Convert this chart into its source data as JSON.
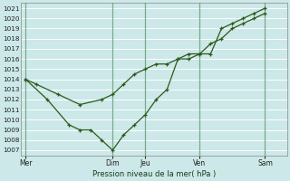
{
  "title": "Pression niveau de la mer( hPa )",
  "bg_color": "#cce8e8",
  "grid_color": "#ffffff",
  "line_color": "#2d5a1b",
  "vline_color": "#7aaa8a",
  "ylim": [
    1006.5,
    1021.5
  ],
  "yticks": [
    1007,
    1008,
    1009,
    1010,
    1011,
    1012,
    1013,
    1014,
    1015,
    1016,
    1017,
    1018,
    1019,
    1020,
    1021
  ],
  "x_day_labels": [
    "Mer",
    "Dim",
    "Jeu",
    "Ven",
    "Sam"
  ],
  "x_day_positions": [
    0,
    4.0,
    5.5,
    8.0,
    11.0
  ],
  "vline_x": [
    0,
    4.0,
    5.5,
    8.0,
    11.0
  ],
  "xlim": [
    -0.2,
    11.5
  ],
  "line1_x": [
    0,
    0.5,
    1.5,
    2.5,
    3.5,
    4.0,
    4.5,
    5.0,
    5.5,
    6.0,
    6.5,
    7.0,
    7.5,
    8.0,
    8.5,
    9.0,
    9.5,
    10.0,
    10.5,
    11.0
  ],
  "line1_y": [
    1014,
    1013.5,
    1012.5,
    1011.5,
    1012.0,
    1012.5,
    1013.5,
    1014.5,
    1015.0,
    1015.5,
    1015.5,
    1016.0,
    1016.5,
    1016.5,
    1017.5,
    1018.0,
    1019.0,
    1019.5,
    1020.0,
    1020.5
  ],
  "line2_x": [
    0,
    1.0,
    2.0,
    2.5,
    3.0,
    3.5,
    4.0,
    4.5,
    5.0,
    5.5,
    6.0,
    6.5,
    7.0,
    7.5,
    8.0,
    8.5,
    9.0,
    9.5,
    10.0,
    10.5,
    11.0
  ],
  "line2_y": [
    1014,
    1012,
    1009.5,
    1009.0,
    1009.0,
    1008.0,
    1007.0,
    1008.5,
    1009.5,
    1010.5,
    1012.0,
    1013.0,
    1016.0,
    1016.0,
    1016.5,
    1016.5,
    1019.0,
    1019.5,
    1020.0,
    1020.5,
    1021.0
  ]
}
